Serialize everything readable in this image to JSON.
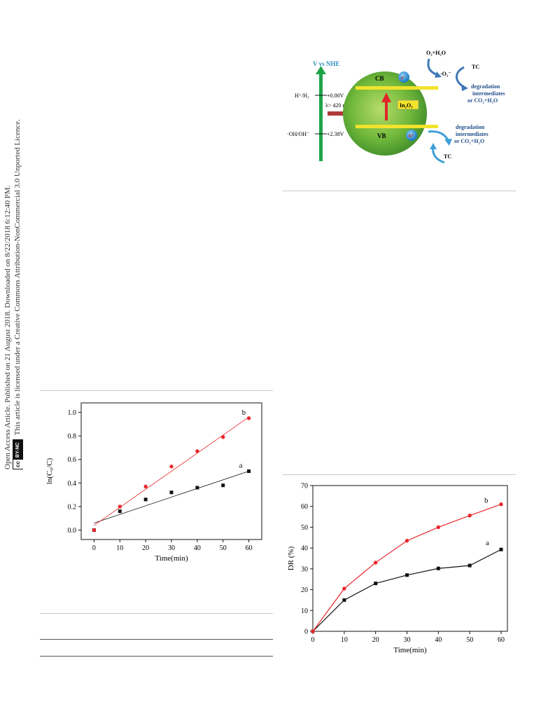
{
  "sidebar": {
    "line1": "Open Access Article. Published on 21 August 2018. Downloaded on 8/22/2018 6:12:40 PM.",
    "cc_left": "cc",
    "cc_right": "BY-NC",
    "line2": "This article is licensed under a Creative Commons Attribution-NonCommercial 3.0 Unported Licence."
  },
  "diagram": {
    "axis_label": "V vs NHE",
    "level_h": "H⁺/H₂",
    "level_h_value": "+0.00V",
    "light": "λ> 420 nm",
    "level_oh": "·OH/OH⁻",
    "level_oh_value": "+2.38V",
    "cb": "CB",
    "vb": "VB",
    "electron": "e⁻",
    "hole": "h⁺",
    "material": "In₂O₃",
    "o2_h2o": "O₂+H₂O",
    "superoxide": "·O₂⁻",
    "tc_top": "TC",
    "degradation_top_1": "degradation",
    "degradation_top_2": "intermediates",
    "degradation_top_3": "or CO₂+H₂O",
    "degradation_bottom_1": "degradation",
    "degradation_bottom_2": "intermediates",
    "degradation_bottom_3": "or CO₂+H₂O",
    "tc_bottom": "TC",
    "colors": {
      "green_bar": "#1fa34a",
      "sphere": "#6fb73a",
      "band": "#f1e32c",
      "arrow": "#e0262b"
    }
  },
  "chart_data": [
    {
      "type": "scatter",
      "title": "",
      "xlabel": "Time(min)",
      "ylabel": "ln(C₀/C)",
      "xlim": [
        -5,
        65
      ],
      "ylim": [
        -0.08,
        1.08
      ],
      "xticks": [
        0,
        10,
        20,
        30,
        40,
        50,
        60
      ],
      "yticks": [
        0.0,
        0.2,
        0.4,
        0.6,
        0.8,
        1.0
      ],
      "series": [
        {
          "name": "a",
          "color": "#111111",
          "marker": "square",
          "x": [
            0,
            10,
            20,
            30,
            40,
            50,
            60
          ],
          "values": [
            0.0,
            0.16,
            0.26,
            0.32,
            0.36,
            0.38,
            0.5
          ],
          "fit": [
            [
              0,
              0.06
            ],
            [
              60,
              0.5
            ]
          ]
        },
        {
          "name": "b",
          "color": "#e8262b",
          "marker": "circle",
          "x": [
            0,
            10,
            20,
            30,
            40,
            50,
            60
          ],
          "values": [
            0.0,
            0.2,
            0.37,
            0.54,
            0.67,
            0.79,
            0.95
          ],
          "fit": [
            [
              0,
              0.04
            ],
            [
              60,
              0.96
            ]
          ]
        }
      ]
    },
    {
      "type": "line",
      "title": "",
      "xlabel": "Time(min)",
      "ylabel": "DR (%)",
      "xlim": [
        0,
        62
      ],
      "ylim": [
        0,
        70
      ],
      "xticks": [
        0,
        10,
        20,
        30,
        40,
        50,
        60
      ],
      "yticks": [
        0,
        10,
        20,
        30,
        40,
        50,
        60,
        70
      ],
      "series": [
        {
          "name": "a",
          "color": "#111111",
          "marker": "square",
          "x": [
            0,
            10,
            20,
            30,
            40,
            50,
            60
          ],
          "values": [
            0,
            15.0,
            23.0,
            27.0,
            30.2,
            31.6,
            39.3
          ]
        },
        {
          "name": "b",
          "color": "#e8262b",
          "marker": "circle",
          "x": [
            0,
            10,
            20,
            30,
            40,
            50,
            60
          ],
          "values": [
            0,
            20.5,
            33.0,
            43.5,
            50.0,
            55.6,
            61.0
          ]
        }
      ]
    }
  ]
}
